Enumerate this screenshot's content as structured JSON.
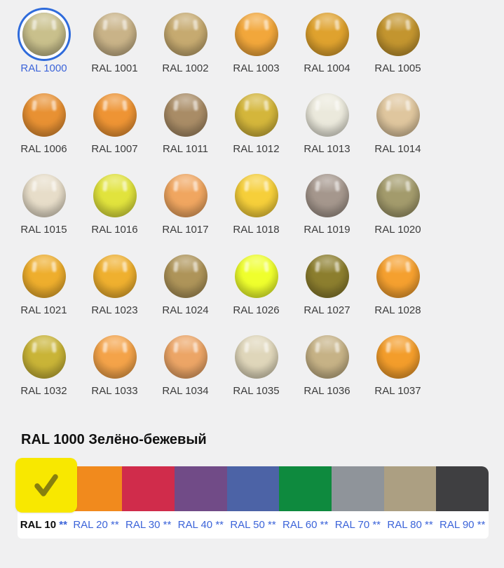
{
  "page": {
    "background_color": "#f0f0f1",
    "selection_ring_color": "#2f6bdb",
    "link_color": "#3c64d9"
  },
  "grid": {
    "items": [
      {
        "code": "RAL 1000",
        "color": "#c9c08c",
        "selected": true
      },
      {
        "code": "RAL 1001",
        "color": "#c9b388",
        "selected": false
      },
      {
        "code": "RAL 1002",
        "color": "#c6aa70",
        "selected": false
      },
      {
        "code": "RAL 1003",
        "color": "#f2a73b",
        "selected": false
      },
      {
        "code": "RAL 1004",
        "color": "#dfa22e",
        "selected": false
      },
      {
        "code": "RAL 1005",
        "color": "#c3952f",
        "selected": false
      },
      {
        "code": "RAL 1006",
        "color": "#e89133",
        "selected": false
      },
      {
        "code": "RAL 1007",
        "color": "#ee9434",
        "selected": false
      },
      {
        "code": "RAL 1011",
        "color": "#a98c66",
        "selected": false
      },
      {
        "code": "RAL 1012",
        "color": "#d4b63b",
        "selected": false
      },
      {
        "code": "RAL 1013",
        "color": "#ebe9dc",
        "selected": false
      },
      {
        "code": "RAL 1014",
        "color": "#dfc69e",
        "selected": false
      },
      {
        "code": "RAL 1015",
        "color": "#e7ddc9",
        "selected": false
      },
      {
        "code": "RAL 1016",
        "color": "#e1e33d",
        "selected": false
      },
      {
        "code": "RAL 1017",
        "color": "#f0a660",
        "selected": false
      },
      {
        "code": "RAL 1018",
        "color": "#f6cf3a",
        "selected": false
      },
      {
        "code": "RAL 1019",
        "color": "#a5978d",
        "selected": false
      },
      {
        "code": "RAL 1020",
        "color": "#a39b6c",
        "selected": false
      },
      {
        "code": "RAL 1021",
        "color": "#eeae2d",
        "selected": false
      },
      {
        "code": "RAL 1023",
        "color": "#efb02f",
        "selected": false
      },
      {
        "code": "RAL 1024",
        "color": "#ae9459",
        "selected": false
      },
      {
        "code": "RAL 1026",
        "color": "#efff2d",
        "selected": false
      },
      {
        "code": "RAL 1027",
        "color": "#8c7e2e",
        "selected": false
      },
      {
        "code": "RAL 1028",
        "color": "#f5a02f",
        "selected": false
      },
      {
        "code": "RAL 1032",
        "color": "#c9b437",
        "selected": false
      },
      {
        "code": "RAL 1033",
        "color": "#f4a349",
        "selected": false
      },
      {
        "code": "RAL 1034",
        "color": "#eca566",
        "selected": false
      },
      {
        "code": "RAL 1035",
        "color": "#dfd6ba",
        "selected": false
      },
      {
        "code": "RAL 1036",
        "color": "#c6b286",
        "selected": false
      },
      {
        "code": "RAL 1037",
        "color": "#f39d2b",
        "selected": false
      }
    ]
  },
  "detail": {
    "title": "RAL 1000 Зелёно-бежевый"
  },
  "categories": {
    "check_icon": "checkmark-icon",
    "check_color": "#87800e",
    "selected_tile_color": "#f8e800",
    "tabs": [
      {
        "label": "RAL 10**",
        "prefix": "RAL 10",
        "stars": "**",
        "color": "#f8e800",
        "selected": true
      },
      {
        "label": "RAL 20**",
        "prefix": "RAL 20",
        "stars": "**",
        "color": "#f18a1d",
        "selected": false
      },
      {
        "label": "RAL 30**",
        "prefix": "RAL 30",
        "stars": "**",
        "color": "#d02c4b",
        "selected": false
      },
      {
        "label": "RAL 40**",
        "prefix": "RAL 40",
        "stars": "**",
        "color": "#714b87",
        "selected": false
      },
      {
        "label": "RAL 50**",
        "prefix": "RAL 50",
        "stars": "**",
        "color": "#4c63a6",
        "selected": false
      },
      {
        "label": "RAL 60**",
        "prefix": "RAL 60",
        "stars": "**",
        "color": "#0e8a3e",
        "selected": false
      },
      {
        "label": "RAL 70**",
        "prefix": "RAL 70",
        "stars": "**",
        "color": "#8f949a",
        "selected": false
      },
      {
        "label": "RAL 80**",
        "prefix": "RAL 80",
        "stars": "**",
        "color": "#ac9f82",
        "selected": false
      },
      {
        "label": "RAL 90**",
        "prefix": "RAL 90",
        "stars": "**",
        "color": "#3f3f41",
        "selected": false
      }
    ]
  }
}
